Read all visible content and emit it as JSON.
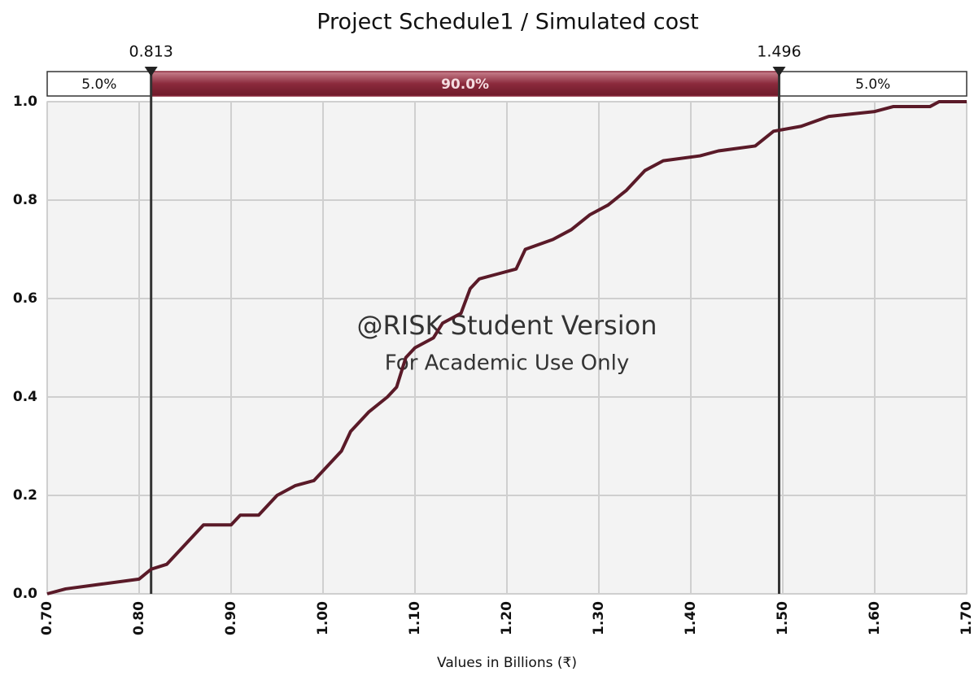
{
  "chart_data": {
    "type": "line",
    "title": "Project Schedule1 / Simulated cost",
    "xlabel": "Values in Billions (₹)",
    "annotations": [
      "@RISK Student Version",
      "For Academic Use Only"
    ],
    "delimiters": [
      0.813,
      1.496
    ],
    "band_labels": [
      "5.0%",
      "90.0%",
      "5.0%"
    ],
    "band_color": "#8b2a3c",
    "grid": true,
    "xlim": [
      0.7,
      1.7
    ],
    "ylim": [
      0,
      1
    ],
    "xticks": [
      {
        "value": 0.7,
        "label": "0.70"
      },
      {
        "value": 0.8,
        "label": "0.80"
      },
      {
        "value": 0.9,
        "label": "0.90"
      },
      {
        "value": 1.0,
        "label": "1.00"
      },
      {
        "value": 1.1,
        "label": "1.10"
      },
      {
        "value": 1.2,
        "label": "1.20"
      },
      {
        "value": 1.3,
        "label": "1.30"
      },
      {
        "value": 1.4,
        "label": "1.40"
      },
      {
        "value": 1.5,
        "label": "1.50"
      },
      {
        "value": 1.6,
        "label": "1.60"
      },
      {
        "value": 1.7,
        "label": "1.70"
      }
    ],
    "yticks": [
      {
        "value": 0,
        "label": "0.0"
      },
      {
        "value": 0.2,
        "label": "0.2"
      },
      {
        "value": 0.4,
        "label": "0.4"
      },
      {
        "value": 0.6,
        "label": "0.6"
      },
      {
        "value": 0.8,
        "label": "0.8"
      },
      {
        "value": 1,
        "label": "1.0"
      }
    ],
    "series": [
      {
        "color": "#5a1a28",
        "x": [
          0.7,
          0.72,
          0.76,
          0.8,
          0.813,
          0.83,
          0.84,
          0.85,
          0.87,
          0.9,
          0.91,
          0.93,
          0.94,
          0.95,
          0.97,
          0.99,
          1.0,
          1.02,
          1.03,
          1.05,
          1.07,
          1.08,
          1.09,
          1.1,
          1.12,
          1.13,
          1.15,
          1.16,
          1.17,
          1.19,
          1.21,
          1.22,
          1.25,
          1.27,
          1.29,
          1.31,
          1.33,
          1.35,
          1.37,
          1.41,
          1.43,
          1.47,
          1.49,
          1.52,
          1.55,
          1.6,
          1.62,
          1.66,
          1.67,
          1.7
        ],
        "values": [
          0.0,
          0.01,
          0.02,
          0.03,
          0.05,
          0.06,
          0.08,
          0.1,
          0.14,
          0.14,
          0.16,
          0.16,
          0.18,
          0.2,
          0.22,
          0.23,
          0.25,
          0.29,
          0.33,
          0.37,
          0.4,
          0.42,
          0.48,
          0.5,
          0.52,
          0.55,
          0.57,
          0.62,
          0.64,
          0.65,
          0.66,
          0.7,
          0.72,
          0.74,
          0.77,
          0.79,
          0.82,
          0.86,
          0.88,
          0.89,
          0.9,
          0.91,
          0.94,
          0.95,
          0.97,
          0.98,
          0.99,
          0.99,
          1.0,
          1.0
        ]
      }
    ]
  }
}
